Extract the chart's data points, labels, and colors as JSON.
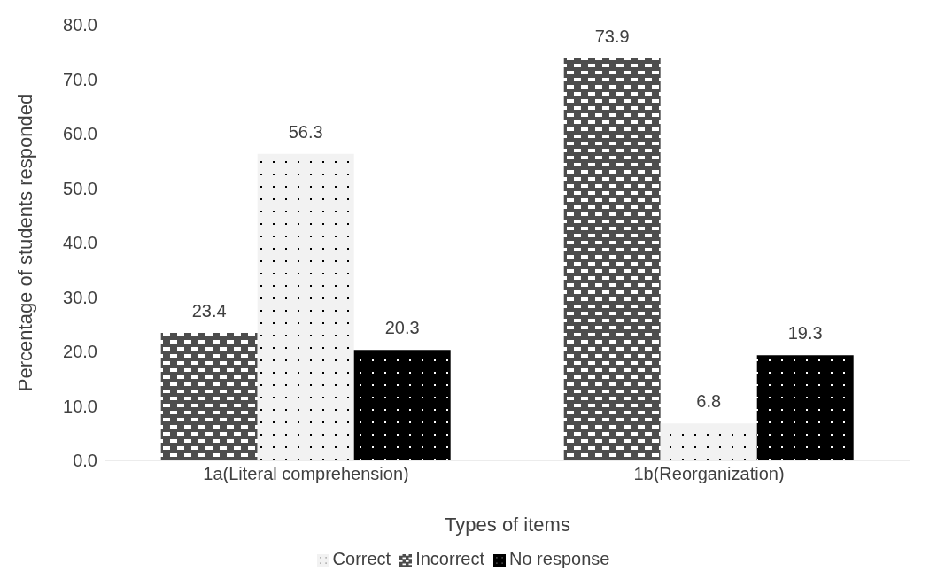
{
  "chart_data": {
    "type": "bar",
    "xlabel": "Types of items",
    "ylabel": "Percentage of students responded",
    "categories": [
      "1a(Literal comprehension)",
      "1b(Reorganization)"
    ],
    "series": [
      {
        "name": "Incorrect",
        "color": "#4d4d4d",
        "values": [
          23.4,
          73.9
        ]
      },
      {
        "name": "Correct",
        "color": "#f2f2f2",
        "values": [
          56.3,
          6.8
        ]
      },
      {
        "name": "No response",
        "color": "#000000",
        "values": [
          20.3,
          19.3
        ]
      }
    ],
    "ylim": [
      0,
      80
    ],
    "yticks": [
      {
        "value": 0,
        "label": "0.0"
      },
      {
        "value": 10,
        "label": "10.0"
      },
      {
        "value": 20,
        "label": "20.0"
      },
      {
        "value": 30,
        "label": "30.0"
      },
      {
        "value": 40,
        "label": "40.0"
      },
      {
        "value": 50,
        "label": "50.0"
      },
      {
        "value": 60,
        "label": "60.0"
      },
      {
        "value": 70,
        "label": "70.0"
      },
      {
        "value": 80,
        "label": "80.0"
      }
    ],
    "data_labels": true,
    "legend": "bottom",
    "grid": false
  }
}
